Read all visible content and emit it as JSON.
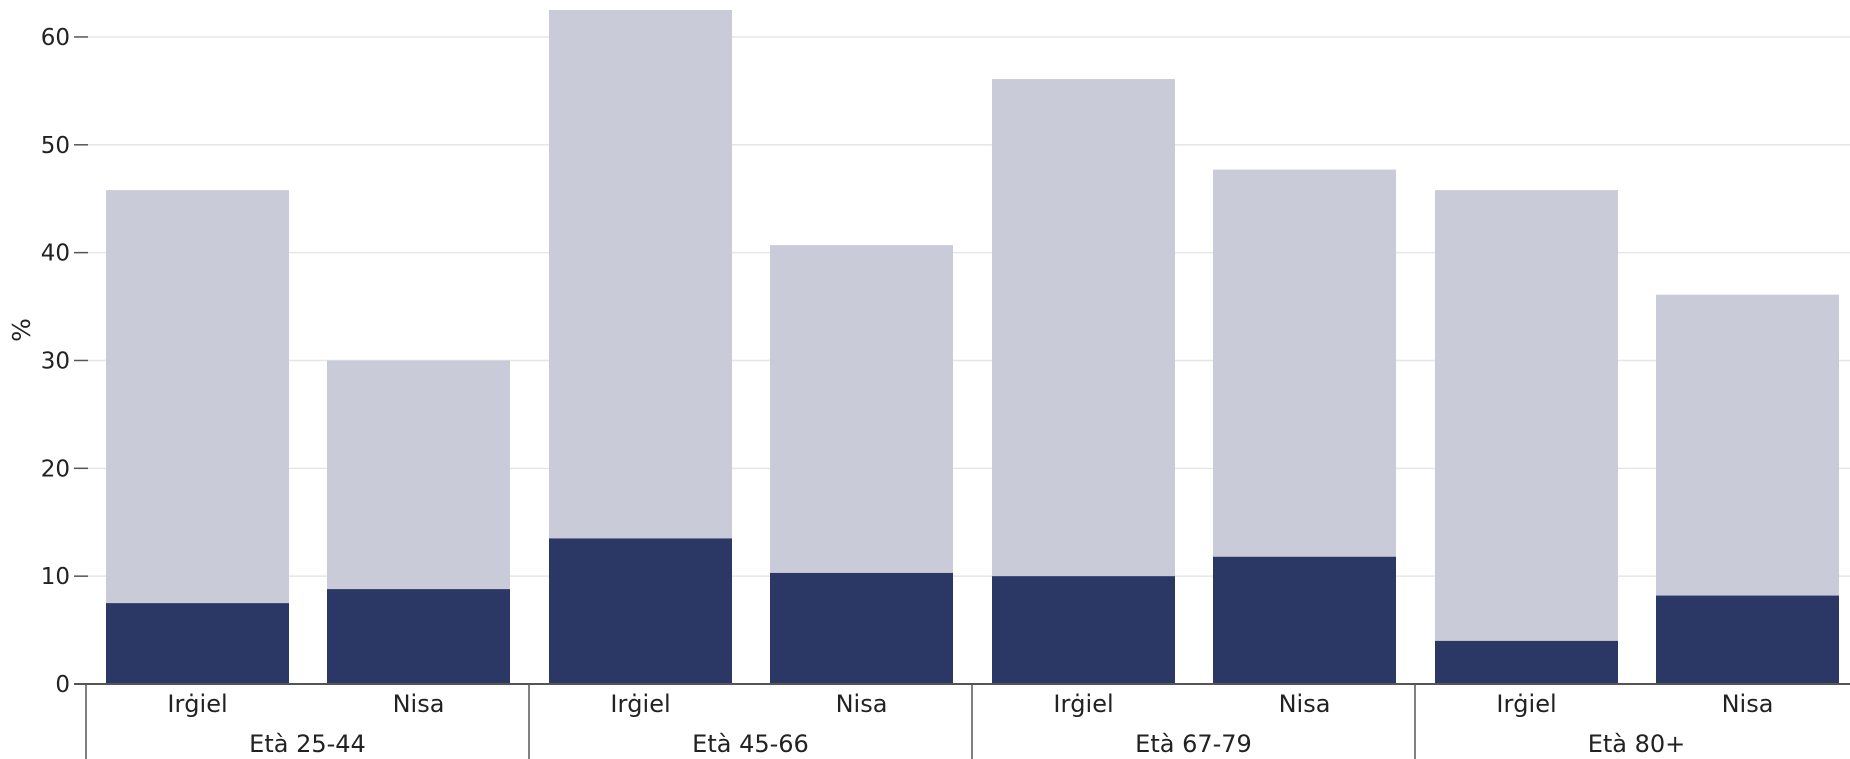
{
  "chart_data": {
    "type": "bar",
    "stacked": true,
    "ylabel": "%",
    "ylim": [
      0,
      62.5
    ],
    "yticks": [
      0,
      10,
      20,
      30,
      40,
      50,
      60
    ],
    "grid": true,
    "groups": [
      {
        "label": "Età 25-44",
        "bars": [
          {
            "label": "Irġiel",
            "lower": 7.5,
            "total": 45.8
          },
          {
            "label": "Nisa",
            "lower": 8.8,
            "total": 30.0
          }
        ]
      },
      {
        "label": "Età 45-66",
        "bars": [
          {
            "label": "Irġiel",
            "lower": 13.5,
            "total": 62.5
          },
          {
            "label": "Nisa",
            "lower": 10.3,
            "total": 40.7
          }
        ]
      },
      {
        "label": "Età 67-79",
        "bars": [
          {
            "label": "Irġiel",
            "lower": 10.0,
            "total": 56.1
          },
          {
            "label": "Nisa",
            "lower": 11.8,
            "total": 47.7
          }
        ]
      },
      {
        "label": "Età 80+",
        "bars": [
          {
            "label": "Irġiel",
            "lower": 4.0,
            "total": 45.8
          },
          {
            "label": "Nisa",
            "lower": 8.2,
            "total": 36.1
          }
        ]
      }
    ],
    "colors": {
      "lower": "#2b3765",
      "upper": "#c9cbd8",
      "grid": "#e6e6e6",
      "axis": "#555555"
    }
  }
}
